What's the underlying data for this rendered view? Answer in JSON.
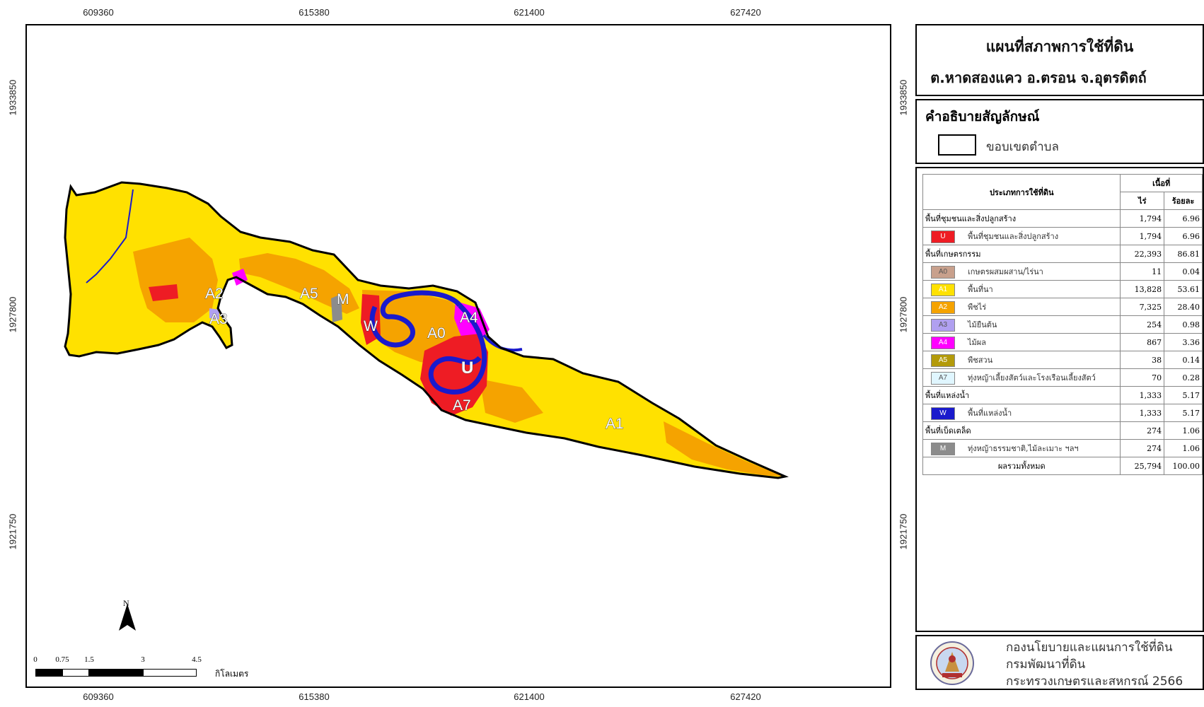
{
  "map": {
    "x_ticks": [
      "609360",
      "615380",
      "621400",
      "627420"
    ],
    "y_ticks": [
      "1933850",
      "1927800",
      "1921750"
    ],
    "labels": {
      "A2": "A2",
      "A3": "A3",
      "A5": "A5",
      "M": "M",
      "W": "W",
      "A0": "A0",
      "A4": "A4",
      "U": "U",
      "A7": "A7",
      "A1": "A1"
    },
    "colors": {
      "A1_paddy": "#ffe100",
      "A2_field": "#f5a300",
      "U_urban": "#ee1c24",
      "W_water": "#1a1acc",
      "A4_orchard": "#ff00ff",
      "M_misc": "#8c8c8c",
      "boundary": "#000000"
    },
    "north_label": "N",
    "scale": {
      "ticks": [
        "0",
        "0.75",
        "1.5",
        "3",
        "4.5"
      ],
      "unit": "กิโลเมตร"
    }
  },
  "title": {
    "line1": "แผนที่สภาพการใช้ที่ดิน",
    "line2": "ต.หาดสองแคว อ.ตรอน จ.อุตรดิตถ์"
  },
  "legend": {
    "heading": "คำอธิบายสัญลักษณ์",
    "boundary_label": "ขอบเขตตำบล"
  },
  "table": {
    "header_type": "ประเภทการใช้ที่ดิน",
    "header_area": "เนื้อที่",
    "header_rai": "ไร่",
    "header_pct": "ร้อยละ",
    "rows": [
      {
        "kind": "cat",
        "name": "พื้นที่ชุมชนและสิ่งปลูกสร้าง",
        "rai": "1,794",
        "pct": "6.96"
      },
      {
        "kind": "sub",
        "code": "U",
        "color": "#ee1c24",
        "name": "พื้นที่ชุมชนและสิ่งปลูกสร้าง",
        "rai": "1,794",
        "pct": "6.96"
      },
      {
        "kind": "cat",
        "name": "พื้นที่เกษตรกรรม",
        "rai": "22,393",
        "pct": "86.81"
      },
      {
        "kind": "sub",
        "code": "A0",
        "color": "#c8a08c",
        "name": "เกษตรผสมผสาน/ไร่นา",
        "rai": "11",
        "pct": "0.04"
      },
      {
        "kind": "sub",
        "code": "A1",
        "color": "#ffe100",
        "name": "พื้นที่นา",
        "rai": "13,828",
        "pct": "53.61"
      },
      {
        "kind": "sub",
        "code": "A2",
        "color": "#f5a300",
        "name": "พืชไร่",
        "rai": "7,325",
        "pct": "28.40"
      },
      {
        "kind": "sub",
        "code": "A3",
        "color": "#b0a0f0",
        "name": "ไม้ยืนต้น",
        "rai": "254",
        "pct": "0.98"
      },
      {
        "kind": "sub",
        "code": "A4",
        "color": "#ff00ff",
        "name": "ไม้ผล",
        "rai": "867",
        "pct": "3.36"
      },
      {
        "kind": "sub",
        "code": "A5",
        "color": "#b39a0a",
        "name": "พืชสวน",
        "rai": "38",
        "pct": "0.14"
      },
      {
        "kind": "sub",
        "code": "A7",
        "color": "#e0f6ff",
        "name": "ทุ่งหญ้าเลี้ยงสัตว์และโรงเรือนเลี้ยงสัตว์",
        "rai": "70",
        "pct": "0.28"
      },
      {
        "kind": "cat",
        "name": "พื้นที่แหล่งน้ำ",
        "rai": "1,333",
        "pct": "5.17"
      },
      {
        "kind": "sub",
        "code": "W",
        "color": "#1a1acc",
        "name": "พื้นที่แหล่งน้ำ",
        "rai": "1,333",
        "pct": "5.17"
      },
      {
        "kind": "cat",
        "name": "พื้นที่เบ็ดเตล็ด",
        "rai": "274",
        "pct": "1.06"
      },
      {
        "kind": "sub",
        "code": "M",
        "color": "#8c8c8c",
        "name": "ทุ่งหญ้าธรรมชาติ,ไม้ละเมาะ ฯลฯ",
        "rai": "274",
        "pct": "1.06"
      },
      {
        "kind": "total",
        "name": "ผลรวมทั้งหมด",
        "rai": "25,794",
        "pct": "100.00"
      }
    ]
  },
  "footer": {
    "line1": "กองนโยบายและแผนการใช้ที่ดิน",
    "line2": "กรมพัฒนาที่ดิน",
    "line3": "กระทรวงเกษตรและสหกรณ์ 2566"
  }
}
